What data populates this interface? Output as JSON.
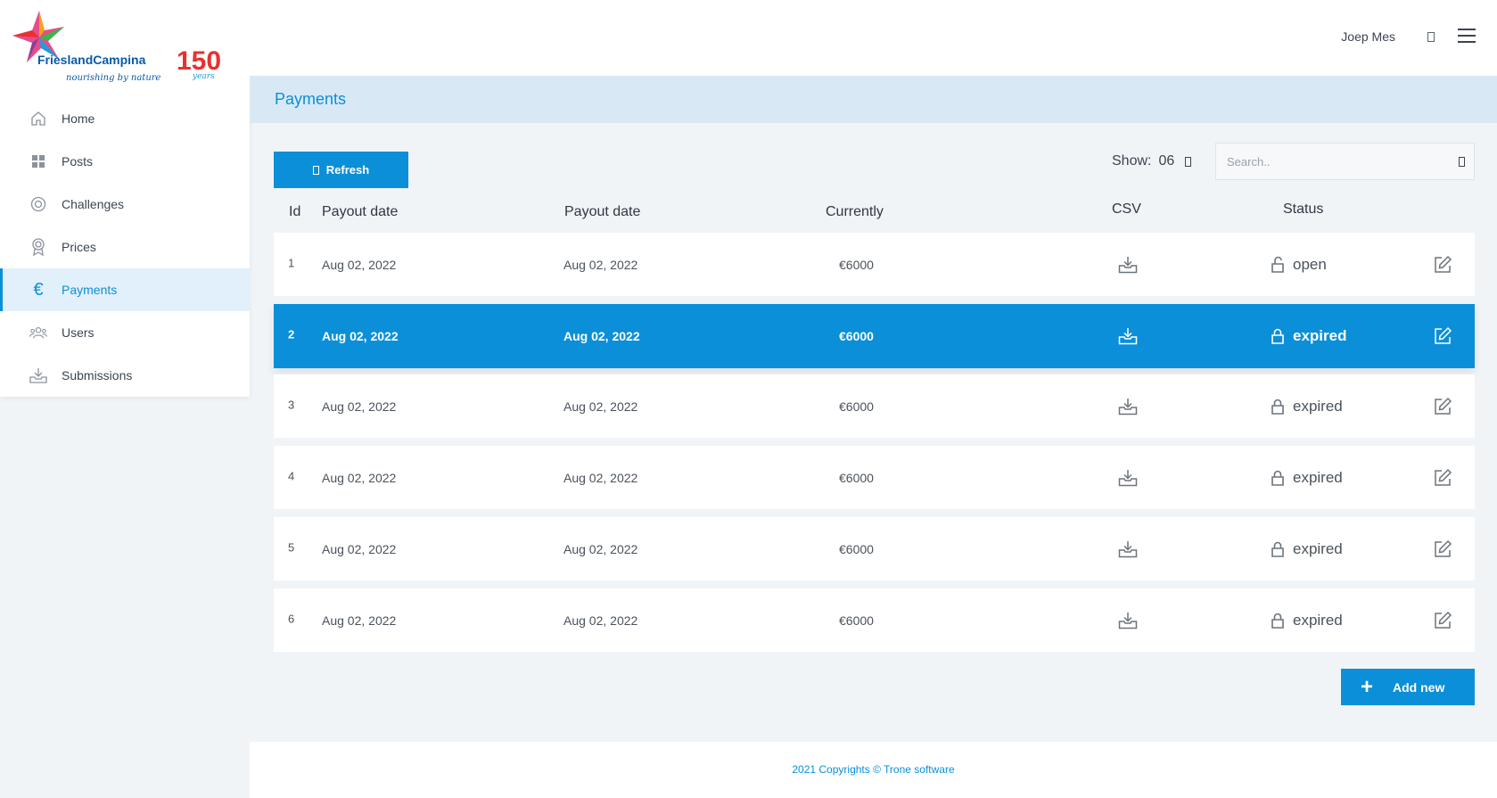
{
  "brand": {
    "logo_text": "FrieslandCampina",
    "tagline": "nourishing by nature",
    "anniversary": "150",
    "anniversary_suffix": "years"
  },
  "header": {
    "user_name": "Joep Mes"
  },
  "sidebar": {
    "items": [
      {
        "label": "Home",
        "icon": "home-icon",
        "active": false
      },
      {
        "label": "Posts",
        "icon": "grid-icon",
        "active": false
      },
      {
        "label": "Challenges",
        "icon": "target-icon",
        "active": false
      },
      {
        "label": "Prices",
        "icon": "award-icon",
        "active": false
      },
      {
        "label": "Payments",
        "icon": "euro-icon",
        "active": true
      },
      {
        "label": "Users",
        "icon": "users-icon",
        "active": false
      },
      {
        "label": "Submissions",
        "icon": "inbox-download-icon",
        "active": false
      }
    ]
  },
  "page": {
    "title": "Payments"
  },
  "toolbar": {
    "refresh_label": "Refresh",
    "show_label": "Show:",
    "show_value": "06",
    "search_placeholder": "Search.."
  },
  "table": {
    "headers": {
      "id": "Id",
      "payout1": "Payout date",
      "payout2": "Payout date",
      "currently": "Currently",
      "csv": "CSV",
      "status": "Status"
    },
    "rows": [
      {
        "id": "1",
        "payout1": "Aug 02, 2022",
        "payout2": "Aug 02, 2022",
        "currently": "€6000",
        "status": "open",
        "selected": false
      },
      {
        "id": "2",
        "payout1": "Aug 02, 2022",
        "payout2": "Aug 02, 2022",
        "currently": "€6000",
        "status": "expired",
        "selected": true
      },
      {
        "id": "3",
        "payout1": "Aug 02, 2022",
        "payout2": "Aug 02, 2022",
        "currently": "€6000",
        "status": "expired",
        "selected": false
      },
      {
        "id": "4",
        "payout1": "Aug 02, 2022",
        "payout2": "Aug 02, 2022",
        "currently": "€6000",
        "status": "expired",
        "selected": false
      },
      {
        "id": "5",
        "payout1": "Aug 02, 2022",
        "payout2": "Aug 02, 2022",
        "currently": "€6000",
        "status": "expired",
        "selected": false
      },
      {
        "id": "6",
        "payout1": "Aug 02, 2022",
        "payout2": "Aug 02, 2022",
        "currently": "€6000",
        "status": "expired",
        "selected": false
      }
    ]
  },
  "actions": {
    "add_new_label": "Add new",
    "add_icon": "+"
  },
  "footer": {
    "copyright": "2021 Copyrights © Trone software"
  },
  "colors": {
    "accent": "#0b8fd8",
    "header_band": "#d8e9f5",
    "background": "#f1f4f7"
  }
}
